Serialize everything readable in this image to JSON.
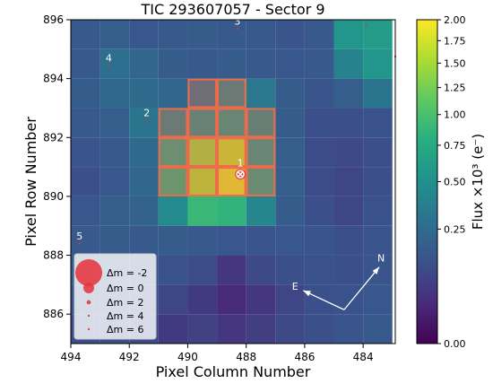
{
  "chart_data": {
    "type": "heatmap",
    "title": "TIC 293607057 - Sector 9",
    "xlabel": "Pixel Column Number",
    "ylabel": "Pixel Row Number",
    "x_reversed": true,
    "xlim": [
      494,
      482.9
    ],
    "ylim": [
      885,
      896
    ],
    "x_ticks": [
      494,
      492,
      490,
      488,
      486,
      484
    ],
    "y_ticks": [
      886,
      888,
      890,
      892,
      894,
      896
    ],
    "columns": [
      493.5,
      492.5,
      491.5,
      490.5,
      489.5,
      488.5,
      487.5,
      486.5,
      485.5,
      484.5,
      483.5
    ],
    "rows": [
      895.5,
      894.5,
      893.5,
      892.5,
      891.5,
      890.5,
      889.5,
      888.5,
      887.5,
      886.5,
      885.5
    ],
    "flux": [
      [
        0.16,
        0.18,
        0.15,
        0.16,
        0.17,
        0.16,
        0.16,
        0.14,
        0.16,
        0.55,
        0.6
      ],
      [
        0.16,
        0.27,
        0.22,
        0.17,
        0.16,
        0.17,
        0.16,
        0.15,
        0.16,
        0.4,
        0.55
      ],
      [
        0.17,
        0.23,
        0.24,
        0.22,
        0.28,
        0.4,
        0.32,
        0.17,
        0.14,
        0.18,
        0.3
      ],
      [
        0.16,
        0.18,
        0.3,
        0.4,
        0.48,
        0.55,
        0.46,
        0.17,
        0.12,
        0.12,
        0.13
      ],
      [
        0.14,
        0.16,
        0.24,
        0.68,
        1.4,
        1.6,
        0.55,
        0.18,
        0.11,
        0.1,
        0.12
      ],
      [
        0.12,
        0.15,
        0.22,
        0.78,
        1.5,
        1.8,
        0.62,
        0.18,
        0.11,
        0.09,
        0.12
      ],
      [
        0.15,
        0.18,
        0.2,
        0.45,
        0.9,
        0.85,
        0.42,
        0.17,
        0.12,
        0.09,
        0.13
      ],
      [
        0.16,
        0.17,
        0.16,
        0.17,
        0.16,
        0.15,
        0.14,
        0.15,
        0.14,
        0.12,
        0.14
      ],
      [
        0.18,
        0.16,
        0.15,
        0.13,
        0.11,
        0.05,
        0.1,
        0.12,
        0.13,
        0.12,
        0.14
      ],
      [
        0.15,
        0.14,
        0.13,
        0.09,
        0.06,
        0.03,
        0.05,
        0.09,
        0.12,
        0.13,
        0.15
      ],
      [
        0.12,
        0.12,
        0.11,
        0.06,
        0.08,
        0.05,
        0.07,
        0.1,
        0.12,
        0.14,
        0.16
      ]
    ],
    "aperture_pixels": [
      [
        489,
        893
      ],
      [
        488,
        893
      ],
      [
        490,
        892
      ],
      [
        489,
        892
      ],
      [
        488,
        892
      ],
      [
        487,
        892
      ],
      [
        490,
        891
      ],
      [
        489,
        891
      ],
      [
        488,
        891
      ],
      [
        487,
        891
      ],
      [
        490,
        890
      ],
      [
        489,
        890
      ],
      [
        488,
        890
      ],
      [
        487,
        890
      ]
    ],
    "aperture_color": "#ee6a4a",
    "stars": [
      {
        "label": "1",
        "x": 488.2,
        "y": 890.75,
        "dm": 0
      },
      {
        "label": "2",
        "x": 491.4,
        "y": 892.6,
        "dm": 4.5
      },
      {
        "label": "3",
        "x": 488.3,
        "y": 895.7,
        "dm": 5.2
      },
      {
        "label": "4",
        "x": 492.7,
        "y": 894.45,
        "dm": 4.6
      },
      {
        "label": "5",
        "x": 493.7,
        "y": 888.4,
        "dm": 4.4
      },
      {
        "label": "",
        "x": 483.9,
        "y": 895.8,
        "dm": 5.5
      },
      {
        "label": "",
        "x": 482.9,
        "y": 894.75,
        "dm": 5.2
      }
    ],
    "star_color": "#e8303a",
    "compass": {
      "north": "N",
      "east": "E"
    },
    "legend": {
      "placement": "lower-left",
      "entries": [
        {
          "label": "Δm =  -2",
          "dm": -2
        },
        {
          "label": "Δm =  0",
          "dm": 0
        },
        {
          "label": "Δm =  2",
          "dm": 2
        },
        {
          "label": "Δm =  4",
          "dm": 4
        },
        {
          "label": "Δm =  6",
          "dm": 6
        }
      ]
    },
    "colorbar": {
      "label": "Flux ×10³ (e⁻)",
      "ticks": [
        2.0,
        1.75,
        1.5,
        1.25,
        1.0,
        0.75,
        0.5,
        0.25,
        0.0
      ],
      "tick_labels": [
        "2.00",
        "1.75",
        "1.50",
        "1.25",
        "1.00",
        "0.75",
        "0.50",
        "0.25",
        "0.00"
      ],
      "colormap": "viridis",
      "scale": "sqrt",
      "vmin": 0,
      "vmax": 2
    }
  }
}
